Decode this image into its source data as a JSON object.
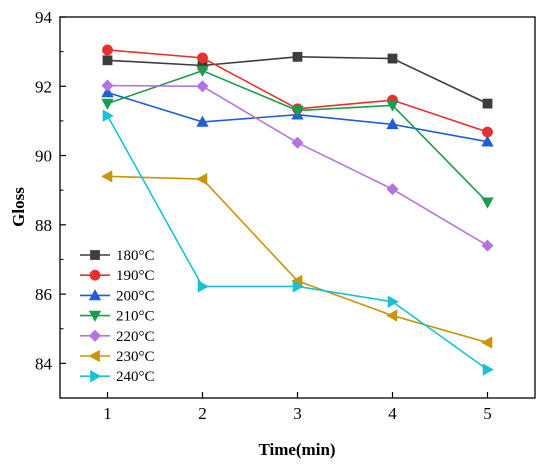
{
  "chart_data": {
    "type": "line",
    "xlabel": "Time(min)",
    "ylabel": "Gloss",
    "x": [
      1,
      2,
      3,
      4,
      5
    ],
    "xticks": [
      "1",
      "2",
      "3",
      "4",
      "5"
    ],
    "yticks": [
      "84",
      "86",
      "88",
      "90",
      "92",
      "94"
    ],
    "xlim": [
      0.5,
      5.5
    ],
    "ylim": [
      83,
      94
    ],
    "grid": false,
    "legend_position": "bottom-left",
    "series": [
      {
        "name": "180°C",
        "color": "#3d3d3d",
        "marker": "square",
        "values": [
          92.75,
          92.6,
          92.85,
          92.8,
          91.5
        ]
      },
      {
        "name": "190°C",
        "color": "#e8302c",
        "marker": "circle",
        "values": [
          93.05,
          92.82,
          91.35,
          91.6,
          90.68
        ]
      },
      {
        "name": "200°C",
        "color": "#1f5fd6",
        "marker": "triangle-up",
        "values": [
          91.82,
          90.97,
          91.18,
          90.9,
          90.4
        ]
      },
      {
        "name": "210°C",
        "color": "#1c9c4c",
        "marker": "triangle-down",
        "values": [
          91.5,
          92.45,
          91.3,
          91.45,
          88.65
        ]
      },
      {
        "name": "220°C",
        "color": "#b474e0",
        "marker": "diamond",
        "values": [
          92.02,
          92.0,
          90.37,
          89.03,
          87.4
        ]
      },
      {
        "name": "230°C",
        "color": "#c7960a",
        "marker": "triangle-left",
        "values": [
          89.4,
          89.32,
          86.38,
          85.38,
          84.6
        ]
      },
      {
        "name": "240°C",
        "color": "#18c1d6",
        "marker": "triangle-right",
        "values": [
          91.15,
          86.22,
          86.22,
          85.78,
          83.82
        ]
      }
    ]
  }
}
